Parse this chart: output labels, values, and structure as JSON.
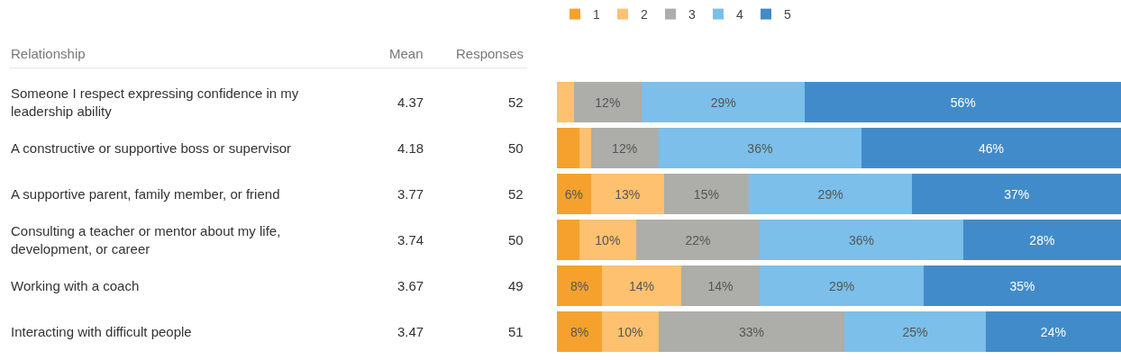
{
  "chart_data": {
    "type": "bar",
    "orientation": "horizontal",
    "stacked": true,
    "categories": [
      "Someone I respect expressing confidence in my leadership ability",
      "A constructive or supportive boss or supervisor",
      "A supportive parent, family member, or friend",
      "Consulting a teacher or mentor about my life, development, or career",
      "Working with a coach",
      "Interacting with difficult people"
    ],
    "series": [
      {
        "name": "1",
        "color": "#f6a12e",
        "values": [
          0,
          4,
          6,
          4,
          8,
          8
        ],
        "value_labels": [
          null,
          null,
          "6%",
          null,
          "8%",
          "8%"
        ]
      },
      {
        "name": "2",
        "color": "#fdc16f",
        "values": [
          3,
          2,
          13,
          10,
          14,
          10
        ],
        "value_labels": [
          null,
          null,
          "13%",
          "10%",
          "14%",
          "10%"
        ]
      },
      {
        "name": "3",
        "color": "#adadaa",
        "values": [
          12,
          12,
          15,
          22,
          14,
          33
        ],
        "value_labels": [
          "12%",
          "12%",
          "15%",
          "22%",
          "14%",
          "33%"
        ]
      },
      {
        "name": "4",
        "color": "#7bbfea",
        "values": [
          29,
          36,
          29,
          36,
          29,
          25
        ],
        "value_labels": [
          "29%",
          "36%",
          "29%",
          "36%",
          "29%",
          "25%"
        ]
      },
      {
        "name": "5",
        "color": "#428bca",
        "values": [
          56,
          46,
          37,
          28,
          35,
          24
        ],
        "value_labels": [
          "56%",
          "46%",
          "37%",
          "28%",
          "35%",
          "24%"
        ]
      }
    ],
    "xlim": [
      0,
      100
    ],
    "tick_labels": "y",
    "legend": "top",
    "annotations": [
      "Relationship",
      "Mean",
      "Responses",
      "4.37",
      "52",
      "4.18",
      "50",
      "3.77",
      "52",
      "3.74",
      "50",
      "3.67",
      "49",
      "3.47",
      "51"
    ]
  }
}
